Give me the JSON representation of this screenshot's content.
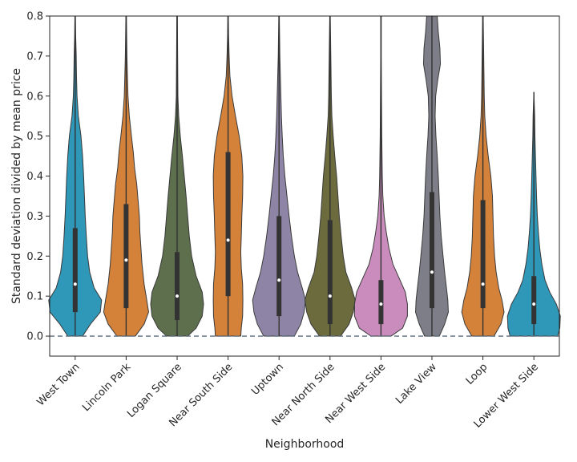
{
  "chart_data": {
    "type": "violin",
    "title": "",
    "xlabel": "Neighborhood",
    "ylabel": "Standard deviation divided by mean price",
    "ylim": [
      -0.05,
      0.8
    ],
    "yticks": [
      0.0,
      0.1,
      0.2,
      0.3,
      0.4,
      0.5,
      0.6,
      0.7,
      0.8
    ],
    "ytick_labels": [
      "0.0",
      "0.1",
      "0.2",
      "0.3",
      "0.4",
      "0.5",
      "0.6",
      "0.7",
      "0.8"
    ],
    "reference_line": {
      "y": 0.0,
      "style": "dashed",
      "color": "#5a6a7a"
    },
    "grid": false,
    "legend": "none",
    "categories": [
      "West Town",
      "Lincoln Park",
      "Logan Square",
      "Near South Side",
      "Uptown",
      "Near North Side",
      "Near West Side",
      "Lake View",
      "Loop",
      "Lower West Side"
    ],
    "series": [
      {
        "color": "#2f97b8",
        "min": 0.0,
        "q1": 0.06,
        "median": 0.13,
        "q3": 0.27,
        "max": 0.8,
        "whisker_low": 0.0,
        "whisker_high": 0.8,
        "profile": [
          [
            0.0,
            0.28
          ],
          [
            0.03,
            0.58
          ],
          [
            0.06,
            0.95
          ],
          [
            0.09,
            1.0
          ],
          [
            0.12,
            0.72
          ],
          [
            0.16,
            0.55
          ],
          [
            0.2,
            0.47
          ],
          [
            0.25,
            0.42
          ],
          [
            0.3,
            0.38
          ],
          [
            0.35,
            0.35
          ],
          [
            0.4,
            0.32
          ],
          [
            0.45,
            0.28
          ],
          [
            0.5,
            0.22
          ],
          [
            0.55,
            0.12
          ],
          [
            0.6,
            0.07
          ],
          [
            0.65,
            0.05
          ],
          [
            0.7,
            0.04
          ],
          [
            0.75,
            0.02
          ],
          [
            0.8,
            0.01
          ]
        ]
      },
      {
        "color": "#d4823a",
        "min": 0.0,
        "q1": 0.07,
        "median": 0.19,
        "q3": 0.33,
        "max": 0.8,
        "whisker_low": 0.0,
        "whisker_high": 0.8,
        "profile": [
          [
            0.0,
            0.35
          ],
          [
            0.03,
            0.68
          ],
          [
            0.06,
            0.85
          ],
          [
            0.09,
            0.78
          ],
          [
            0.13,
            0.68
          ],
          [
            0.18,
            0.6
          ],
          [
            0.22,
            0.56
          ],
          [
            0.26,
            0.52
          ],
          [
            0.3,
            0.5
          ],
          [
            0.34,
            0.45
          ],
          [
            0.38,
            0.4
          ],
          [
            0.42,
            0.32
          ],
          [
            0.46,
            0.27
          ],
          [
            0.5,
            0.2
          ],
          [
            0.55,
            0.12
          ],
          [
            0.6,
            0.07
          ],
          [
            0.65,
            0.05
          ],
          [
            0.7,
            0.03
          ],
          [
            0.75,
            0.02
          ],
          [
            0.8,
            0.01
          ]
        ]
      },
      {
        "color": "#5d6f4c",
        "min": 0.0,
        "q1": 0.04,
        "median": 0.1,
        "q3": 0.21,
        "max": 0.8,
        "whisker_low": 0.0,
        "whisker_high": 0.8,
        "profile": [
          [
            0.0,
            0.4
          ],
          [
            0.02,
            0.72
          ],
          [
            0.05,
            0.95
          ],
          [
            0.08,
            1.0
          ],
          [
            0.11,
            0.95
          ],
          [
            0.15,
            0.72
          ],
          [
            0.2,
            0.55
          ],
          [
            0.25,
            0.46
          ],
          [
            0.3,
            0.4
          ],
          [
            0.35,
            0.34
          ],
          [
            0.4,
            0.27
          ],
          [
            0.45,
            0.2
          ],
          [
            0.5,
            0.12
          ],
          [
            0.55,
            0.06
          ],
          [
            0.6,
            0.03
          ],
          [
            0.7,
            0.02
          ],
          [
            0.8,
            0.01
          ]
        ]
      },
      {
        "color": "#d4823a",
        "min": 0.0,
        "q1": 0.1,
        "median": 0.24,
        "q3": 0.46,
        "max": 0.8,
        "whisker_low": 0.0,
        "whisker_high": 0.8,
        "profile": [
          [
            0.0,
            0.48
          ],
          [
            0.02,
            0.5
          ],
          [
            0.05,
            0.55
          ],
          [
            0.09,
            0.56
          ],
          [
            0.13,
            0.55
          ],
          [
            0.17,
            0.5
          ],
          [
            0.21,
            0.48
          ],
          [
            0.25,
            0.5
          ],
          [
            0.3,
            0.52
          ],
          [
            0.35,
            0.55
          ],
          [
            0.4,
            0.56
          ],
          [
            0.45,
            0.52
          ],
          [
            0.5,
            0.42
          ],
          [
            0.55,
            0.28
          ],
          [
            0.6,
            0.15
          ],
          [
            0.65,
            0.07
          ],
          [
            0.7,
            0.04
          ],
          [
            0.75,
            0.02
          ],
          [
            0.8,
            0.01
          ]
        ]
      },
      {
        "color": "#8e85a6",
        "min": 0.0,
        "q1": 0.05,
        "median": 0.14,
        "q3": 0.3,
        "max": 0.8,
        "whisker_low": 0.0,
        "whisker_high": 0.8,
        "profile": [
          [
            0.0,
            0.58
          ],
          [
            0.03,
            0.82
          ],
          [
            0.06,
            0.95
          ],
          [
            0.09,
            1.0
          ],
          [
            0.12,
            0.88
          ],
          [
            0.16,
            0.7
          ],
          [
            0.2,
            0.58
          ],
          [
            0.25,
            0.47
          ],
          [
            0.3,
            0.38
          ],
          [
            0.35,
            0.3
          ],
          [
            0.4,
            0.22
          ],
          [
            0.45,
            0.16
          ],
          [
            0.5,
            0.12
          ],
          [
            0.55,
            0.09
          ],
          [
            0.6,
            0.07
          ],
          [
            0.65,
            0.05
          ],
          [
            0.7,
            0.03
          ],
          [
            0.75,
            0.02
          ],
          [
            0.8,
            0.01
          ]
        ]
      },
      {
        "color": "#6b6b3e",
        "min": 0.0,
        "q1": 0.03,
        "median": 0.1,
        "q3": 0.29,
        "max": 0.8,
        "whisker_low": 0.0,
        "whisker_high": 0.8,
        "profile": [
          [
            0.0,
            0.4
          ],
          [
            0.03,
            0.72
          ],
          [
            0.06,
            0.88
          ],
          [
            0.09,
            0.95
          ],
          [
            0.12,
            0.82
          ],
          [
            0.16,
            0.6
          ],
          [
            0.2,
            0.5
          ],
          [
            0.25,
            0.42
          ],
          [
            0.3,
            0.35
          ],
          [
            0.35,
            0.3
          ],
          [
            0.4,
            0.25
          ],
          [
            0.45,
            0.18
          ],
          [
            0.5,
            0.12
          ],
          [
            0.55,
            0.07
          ],
          [
            0.6,
            0.05
          ],
          [
            0.65,
            0.04
          ],
          [
            0.7,
            0.03
          ],
          [
            0.75,
            0.02
          ],
          [
            0.8,
            0.01
          ]
        ]
      },
      {
        "color": "#c98cbc",
        "min": 0.0,
        "q1": 0.03,
        "median": 0.08,
        "q3": 0.14,
        "max": 0.8,
        "whisker_low": 0.0,
        "whisker_high": 0.8,
        "profile": [
          [
            0.0,
            0.38
          ],
          [
            0.02,
            0.82
          ],
          [
            0.05,
            1.0
          ],
          [
            0.08,
            1.0
          ],
          [
            0.11,
            0.92
          ],
          [
            0.14,
            0.72
          ],
          [
            0.18,
            0.45
          ],
          [
            0.22,
            0.3
          ],
          [
            0.26,
            0.2
          ],
          [
            0.3,
            0.12
          ],
          [
            0.35,
            0.07
          ],
          [
            0.4,
            0.05
          ],
          [
            0.5,
            0.03
          ],
          [
            0.6,
            0.02
          ],
          [
            0.7,
            0.01
          ],
          [
            0.8,
            0.01
          ]
        ]
      },
      {
        "color": "#7e7e88",
        "min": 0.0,
        "q1": 0.07,
        "median": 0.16,
        "q3": 0.36,
        "max": 0.8,
        "whisker_low": 0.0,
        "whisker_high": 0.8,
        "profile": [
          [
            0.0,
            0.28
          ],
          [
            0.03,
            0.48
          ],
          [
            0.06,
            0.62
          ],
          [
            0.09,
            0.6
          ],
          [
            0.12,
            0.55
          ],
          [
            0.16,
            0.48
          ],
          [
            0.2,
            0.42
          ],
          [
            0.25,
            0.35
          ],
          [
            0.3,
            0.3
          ],
          [
            0.35,
            0.27
          ],
          [
            0.4,
            0.24
          ],
          [
            0.45,
            0.2
          ],
          [
            0.5,
            0.15
          ],
          [
            0.55,
            0.12
          ],
          [
            0.6,
            0.14
          ],
          [
            0.64,
            0.22
          ],
          [
            0.68,
            0.32
          ],
          [
            0.72,
            0.3
          ],
          [
            0.76,
            0.24
          ],
          [
            0.8,
            0.2
          ]
        ]
      },
      {
        "color": "#d4823a",
        "min": 0.0,
        "q1": 0.07,
        "median": 0.13,
        "q3": 0.34,
        "max": 0.8,
        "whisker_low": 0.0,
        "whisker_high": 0.8,
        "profile": [
          [
            0.0,
            0.42
          ],
          [
            0.03,
            0.68
          ],
          [
            0.06,
            0.8
          ],
          [
            0.09,
            0.72
          ],
          [
            0.12,
            0.6
          ],
          [
            0.16,
            0.5
          ],
          [
            0.2,
            0.44
          ],
          [
            0.25,
            0.4
          ],
          [
            0.3,
            0.38
          ],
          [
            0.35,
            0.36
          ],
          [
            0.4,
            0.3
          ],
          [
            0.45,
            0.2
          ],
          [
            0.5,
            0.12
          ],
          [
            0.55,
            0.07
          ],
          [
            0.6,
            0.05
          ],
          [
            0.65,
            0.04
          ],
          [
            0.7,
            0.03
          ],
          [
            0.75,
            0.02
          ],
          [
            0.8,
            0.01
          ]
        ]
      },
      {
        "color": "#2f97b8",
        "min": 0.0,
        "q1": 0.03,
        "median": 0.08,
        "q3": 0.15,
        "max": 0.61,
        "whisker_low": 0.0,
        "whisker_high": 0.61,
        "profile": [
          [
            0.0,
            0.9
          ],
          [
            0.02,
            0.98
          ],
          [
            0.05,
            1.0
          ],
          [
            0.08,
            0.85
          ],
          [
            0.11,
            0.6
          ],
          [
            0.14,
            0.42
          ],
          [
            0.18,
            0.3
          ],
          [
            0.22,
            0.22
          ],
          [
            0.26,
            0.17
          ],
          [
            0.3,
            0.13
          ],
          [
            0.35,
            0.1
          ],
          [
            0.4,
            0.08
          ],
          [
            0.45,
            0.06
          ],
          [
            0.5,
            0.04
          ],
          [
            0.55,
            0.03
          ],
          [
            0.61,
            0.0
          ]
        ]
      }
    ]
  }
}
